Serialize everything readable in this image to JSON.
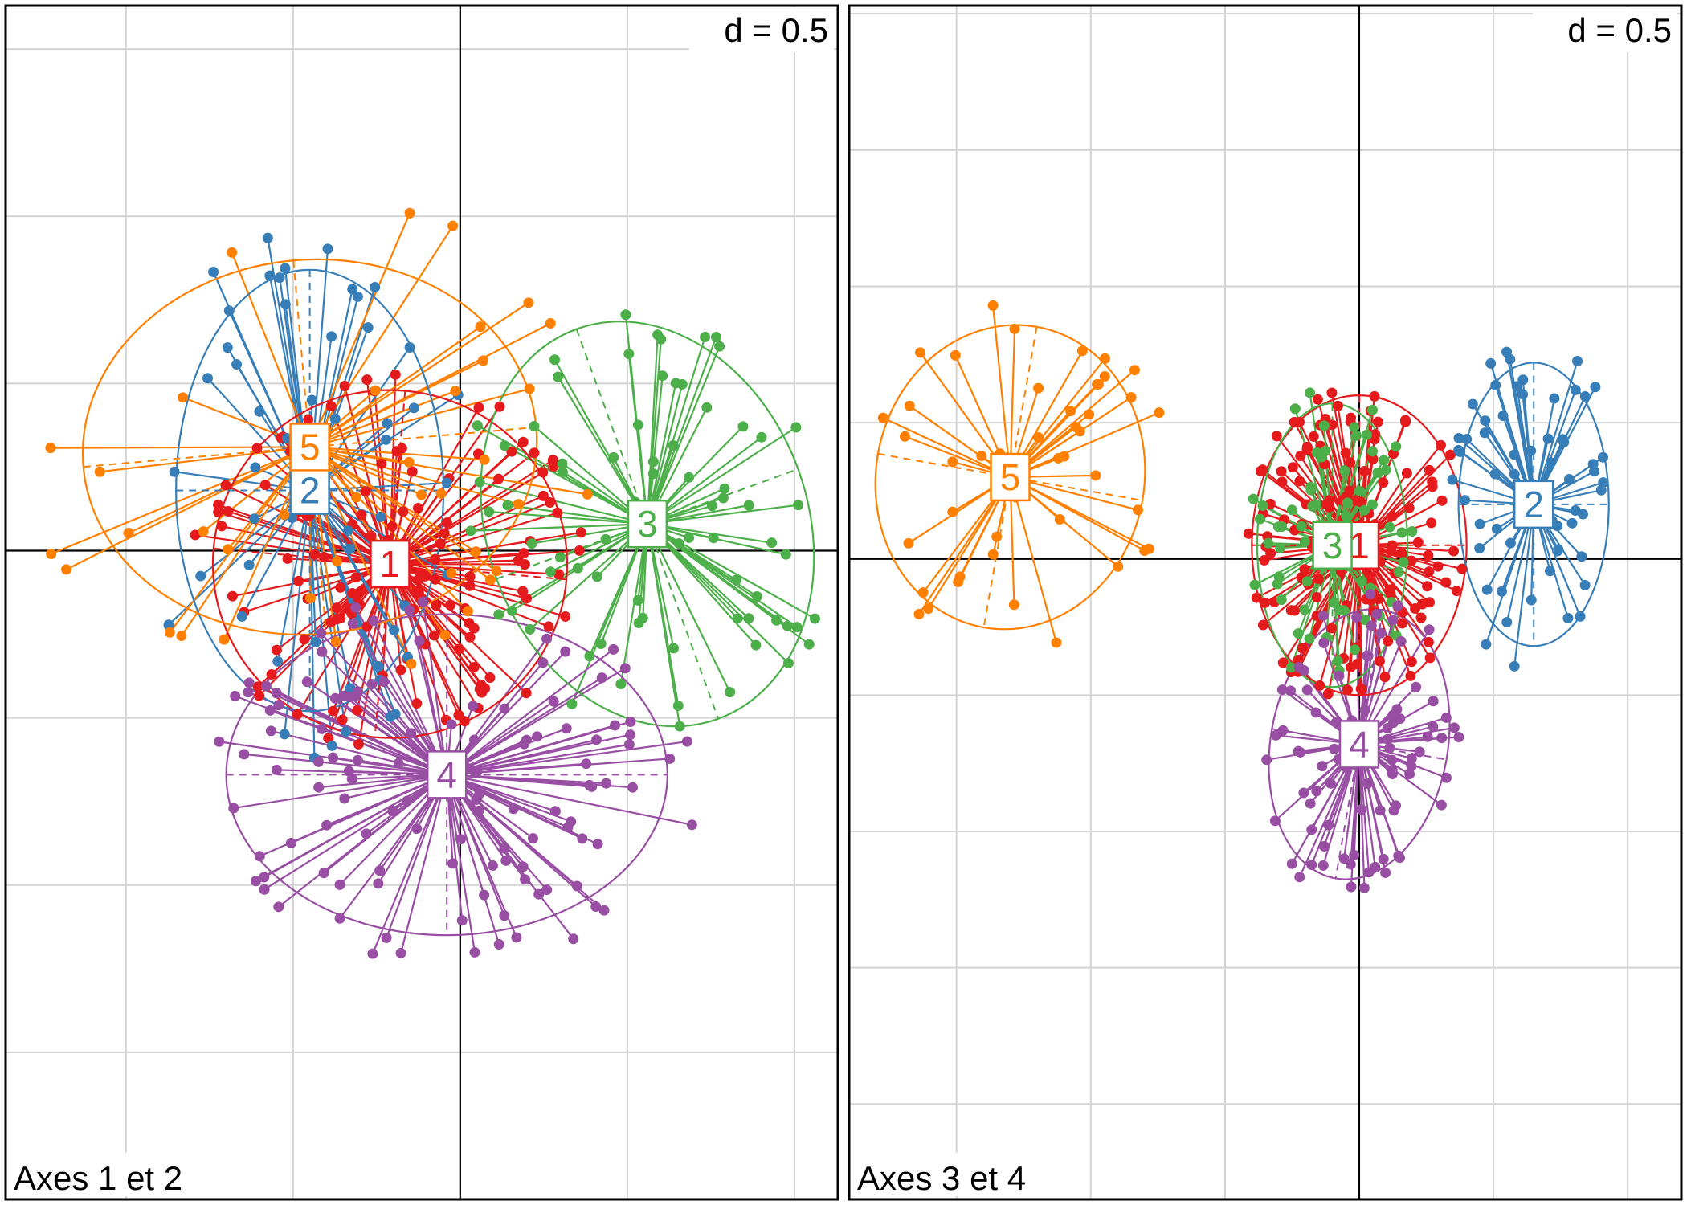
{
  "chart_data": [
    {
      "type": "scatter",
      "subtype": "class-star-plot",
      "corner_label": "Axes 1 et 2",
      "scale_label": "d = 0.5",
      "grid_step": 0.5,
      "xlim": [
        -1.36,
        1.13
      ],
      "ylim": [
        -1.94,
        1.63
      ],
      "grid": true,
      "axes_lines": true,
      "classes": [
        {
          "name": "1",
          "color": "#e41a1c",
          "center": [
            -0.21,
            -0.04
          ],
          "radii": [
            0.53,
            0.52
          ],
          "angle": 5,
          "n": 130,
          "spread": 1.0
        },
        {
          "name": "2",
          "color": "#377eb8",
          "center": [
            -0.45,
            0.18
          ],
          "radii": [
            0.4,
            0.66
          ],
          "angle": 0,
          "n": 55,
          "spread": 1.1
        },
        {
          "name": "3",
          "color": "#4daf4a",
          "center": [
            0.56,
            0.08
          ],
          "radii": [
            0.48,
            0.62
          ],
          "angle": -20,
          "n": 75,
          "spread": 1.0
        },
        {
          "name": "4",
          "color": "#984ea3",
          "center": [
            -0.04,
            -0.67
          ],
          "radii": [
            0.66,
            0.48
          ],
          "angle": 0,
          "n": 120,
          "spread": 1.05
        },
        {
          "name": "5",
          "color": "#ff7f00",
          "center": [
            -0.45,
            0.31
          ],
          "radii": [
            0.68,
            0.56
          ],
          "angle": -5,
          "n": 40,
          "spread": 1.2
        }
      ]
    },
    {
      "type": "scatter",
      "subtype": "class-star-plot",
      "corner_label": "Axes 3 et 4",
      "scale_label": "d = 0.5",
      "grid_step": 0.5,
      "xlim": [
        -1.9,
        1.2
      ],
      "ylim": [
        -2.35,
        2.03
      ],
      "grid": true,
      "axes_lines": true,
      "classes": [
        {
          "name": "1",
          "color": "#e41a1c",
          "center": [
            0.0,
            0.05
          ],
          "radii": [
            0.4,
            0.55
          ],
          "angle": 0,
          "n": 150,
          "spread": 0.95
        },
        {
          "name": "2",
          "color": "#377eb8",
          "center": [
            0.65,
            0.2
          ],
          "radii": [
            0.28,
            0.52
          ],
          "angle": 0,
          "n": 60,
          "spread": 1.05
        },
        {
          "name": "3",
          "color": "#4daf4a",
          "center": [
            -0.1,
            0.05
          ],
          "radii": [
            0.28,
            0.52
          ],
          "angle": 0,
          "n": 70,
          "spread": 1.0
        },
        {
          "name": "4",
          "color": "#984ea3",
          "center": [
            0.0,
            -0.68
          ],
          "radii": [
            0.33,
            0.5
          ],
          "angle": 10,
          "n": 90,
          "spread": 1.0
        },
        {
          "name": "5",
          "color": "#ff7f00",
          "center": [
            -1.3,
            0.3
          ],
          "radii": [
            0.5,
            0.56
          ],
          "angle": 10,
          "n": 45,
          "spread": 1.05
        }
      ]
    }
  ]
}
